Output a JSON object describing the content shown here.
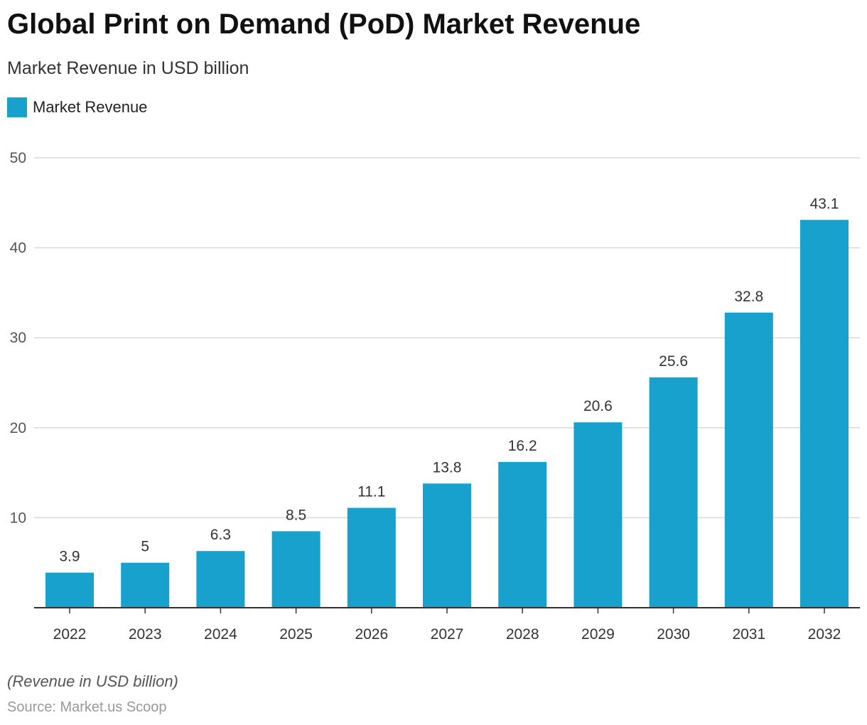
{
  "chart_data": {
    "type": "bar",
    "title": "Global Print on Demand (PoD) Market Revenue",
    "subtitle": "Market Revenue in USD billion",
    "legend": [
      "Market Revenue"
    ],
    "legend_position": "top-left",
    "categories": [
      "2022",
      "2023",
      "2024",
      "2025",
      "2026",
      "2027",
      "2028",
      "2029",
      "2030",
      "2031",
      "2032"
    ],
    "series": [
      {
        "name": "Market Revenue",
        "values": [
          3.9,
          5,
          6.3,
          8.5,
          11.1,
          13.8,
          16.2,
          20.6,
          25.6,
          32.8,
          43.1
        ],
        "labels": [
          "3.9",
          "5",
          "6.3",
          "8.5",
          "11.1",
          "13.8",
          "16.2",
          "20.6",
          "25.6",
          "32.8",
          "43.1"
        ]
      }
    ],
    "yticks": [
      "10",
      "20",
      "30",
      "40",
      "50"
    ],
    "ylim": [
      0,
      50
    ],
    "grid": true,
    "xlabel": "",
    "ylabel": "",
    "color": "#18a1cd"
  },
  "footer": {
    "note": "(Revenue in USD billion)",
    "source": "Source: Market.us Scoop"
  }
}
